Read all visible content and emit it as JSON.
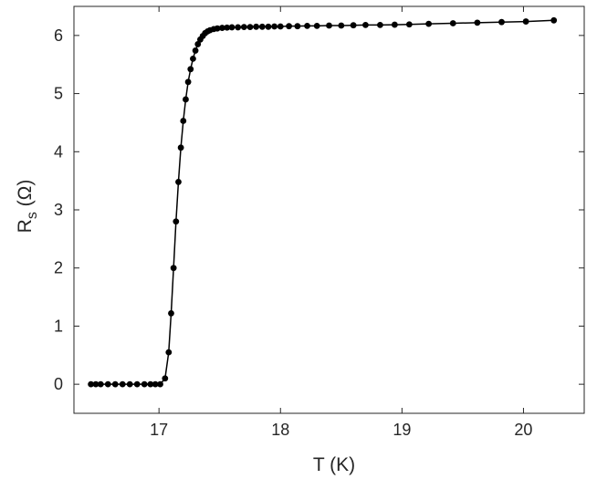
{
  "chart_data": {
    "type": "line",
    "title": "",
    "xlabel": "T (K)",
    "ylabel": {
      "main": "R",
      "sub": "s",
      "unit": " (Ω)"
    },
    "xlim": [
      16.3,
      20.5
    ],
    "ylim": [
      -0.5,
      6.5
    ],
    "xticks": [
      17,
      18,
      19,
      20
    ],
    "yticks": [
      0,
      1,
      2,
      3,
      4,
      5,
      6
    ],
    "grid": false,
    "legend": "none",
    "series": [
      {
        "color": "#000000",
        "marker": "filled-circle",
        "x": [
          16.44,
          16.48,
          16.52,
          16.58,
          16.64,
          16.7,
          16.76,
          16.82,
          16.88,
          16.93,
          16.97,
          17.01,
          17.05,
          17.08,
          17.1,
          17.12,
          17.14,
          17.16,
          17.18,
          17.2,
          17.22,
          17.24,
          17.26,
          17.28,
          17.3,
          17.32,
          17.34,
          17.36,
          17.38,
          17.4,
          17.42,
          17.45,
          17.48,
          17.52,
          17.56,
          17.6,
          17.65,
          17.7,
          17.75,
          17.8,
          17.85,
          17.9,
          17.95,
          18.0,
          18.07,
          18.14,
          18.22,
          18.3,
          18.4,
          18.5,
          18.6,
          18.7,
          18.82,
          18.94,
          19.06,
          19.22,
          19.42,
          19.62,
          19.82,
          20.02,
          20.25
        ],
        "y": [
          0.0,
          0.0,
          0.0,
          0.0,
          0.0,
          0.0,
          0.0,
          0.0,
          0.0,
          0.0,
          0.0,
          0.0,
          0.1,
          0.55,
          1.22,
          2.0,
          2.8,
          3.48,
          4.07,
          4.53,
          4.9,
          5.2,
          5.42,
          5.6,
          5.74,
          5.85,
          5.93,
          5.99,
          6.04,
          6.07,
          6.09,
          6.11,
          6.12,
          6.13,
          6.135,
          6.14,
          6.14,
          6.145,
          6.145,
          6.15,
          6.15,
          6.15,
          6.155,
          6.155,
          6.16,
          6.16,
          6.165,
          6.165,
          6.17,
          6.17,
          6.175,
          6.18,
          6.18,
          6.185,
          6.19,
          6.2,
          6.21,
          6.22,
          6.23,
          6.24,
          6.26
        ]
      }
    ]
  }
}
